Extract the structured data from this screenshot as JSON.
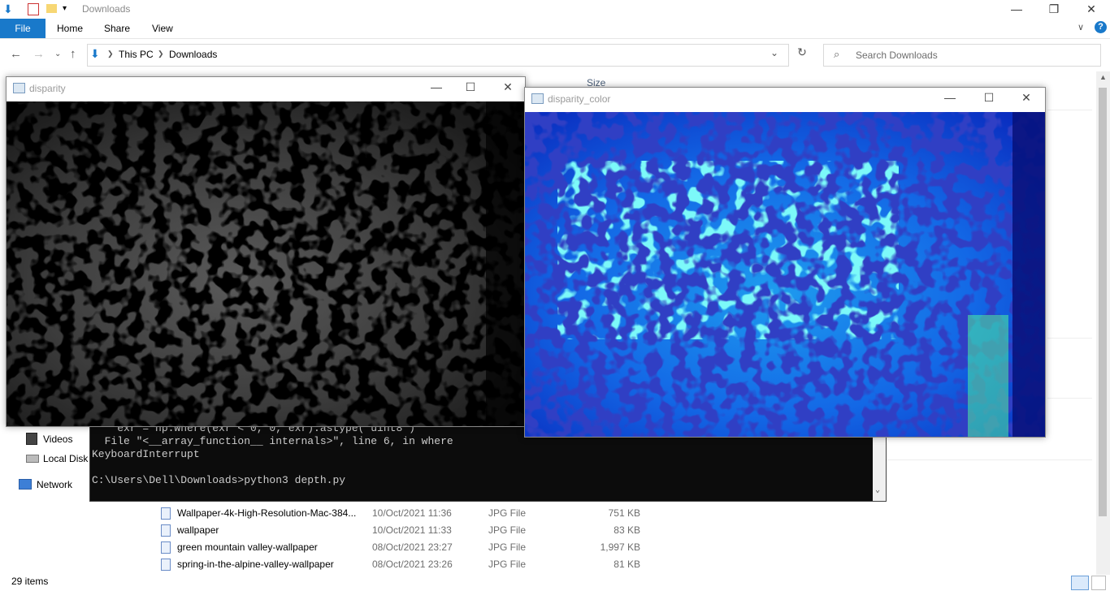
{
  "explorer": {
    "title": "Downloads",
    "ribbon_tabs": [
      "File",
      "Home",
      "Share",
      "View"
    ],
    "breadcrumb": [
      "This PC",
      "Downloads"
    ],
    "search_placeholder": "Search Downloads",
    "column_size": "Size",
    "nav": {
      "videos": "Videos",
      "local_disk": "Local Disk",
      "network": "Network"
    },
    "files": [
      {
        "name": "Wallpaper-4k-High-Resolution-Mac-384...",
        "date": "10/Oct/2021 11:36",
        "type": "JPG File",
        "size": "751 KB"
      },
      {
        "name": "wallpaper",
        "date": "10/Oct/2021 11:33",
        "type": "JPG File",
        "size": "83 KB"
      },
      {
        "name": "green mountain valley-wallpaper",
        "date": "08/Oct/2021 23:27",
        "type": "JPG File",
        "size": "1,997 KB"
      },
      {
        "name": "spring-in-the-alpine-valley-wallpaper",
        "date": "08/Oct/2021 23:26",
        "type": "JPG File",
        "size": "81 KB"
      }
    ],
    "status": "29 items",
    "accent": "#1979ca"
  },
  "disparity_window": {
    "title": "disparity"
  },
  "disparity_color_window": {
    "title": "disparity_color"
  },
  "console": {
    "lines": [
      "    exr = np.where(exr < 0, 0, exr).astype('uint8')",
      "  File \"<__array_function__ internals>\", line 6, in where",
      "KeyboardInterrupt",
      "",
      "C:\\Users\\Dell\\Downloads>python3 depth.py"
    ]
  }
}
